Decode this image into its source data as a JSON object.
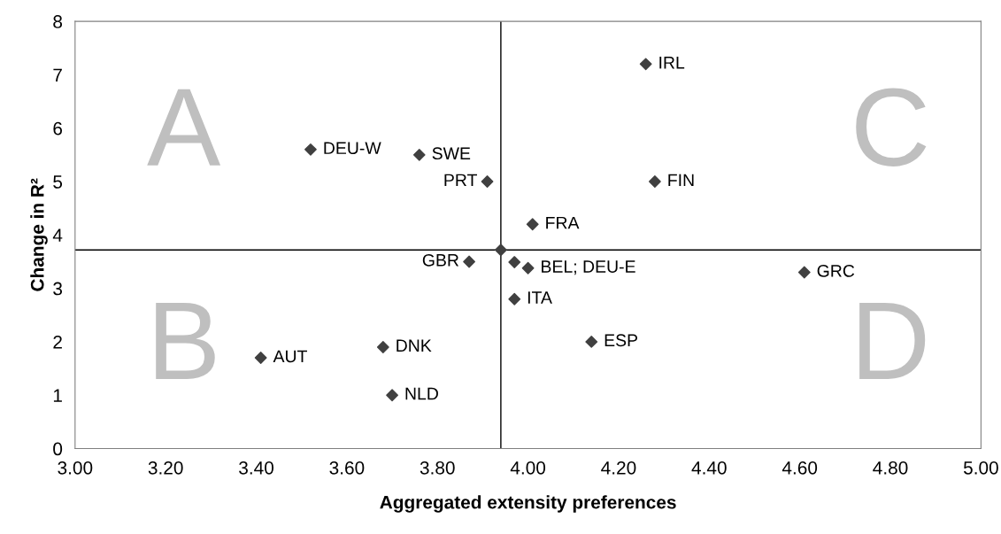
{
  "chart_data": {
    "type": "scatter",
    "xlabel": "Aggregated extensity preferences",
    "ylabel": "Change in R²",
    "x": [
      3.52,
      3.76,
      3.91,
      3.94,
      3.87,
      4.26,
      4.28,
      4.01,
      3.97,
      4.0,
      3.97,
      4.14,
      4.61,
      3.41,
      3.68,
      3.7
    ],
    "series": [
      {
        "color": "#404040",
        "values": [
          5.6,
          5.5,
          5.0,
          3.72,
          3.5,
          7.2,
          5.0,
          4.2,
          3.49,
          3.38,
          2.8,
          2.0,
          3.3,
          1.7,
          1.9,
          1.0
        ]
      }
    ],
    "marker": "diamond",
    "xlim": [
      3.0,
      5.0
    ],
    "xticks": [
      {
        "value": 3.0,
        "label": "3.00"
      },
      {
        "value": 3.2,
        "label": "3.20"
      },
      {
        "value": 3.4,
        "label": "3.40"
      },
      {
        "value": 3.6,
        "label": "3.60"
      },
      {
        "value": 3.8,
        "label": "3.80"
      },
      {
        "value": 4.0,
        "label": "4.00"
      },
      {
        "value": 4.2,
        "label": "4.20"
      },
      {
        "value": 4.4,
        "label": "4.40"
      },
      {
        "value": 4.6,
        "label": "4.60"
      },
      {
        "value": 4.8,
        "label": "4.80"
      },
      {
        "value": 5.0,
        "label": "5.00"
      }
    ],
    "ylim": [
      0,
      8
    ],
    "yticks": [
      0,
      1,
      2,
      3,
      4,
      5,
      6,
      7,
      8
    ],
    "grid": false,
    "legend": false,
    "ref_lines": [
      {
        "axis": "x",
        "value": 3.94,
        "color": "#000000"
      },
      {
        "axis": "y",
        "value": 3.72,
        "color": "#000000"
      }
    ],
    "annotations": [
      "A",
      "B",
      "C",
      "D",
      {
        "text": "DEU-W",
        "x": 3.52,
        "y": 5.6
      },
      {
        "text": "SWE",
        "x": 3.76,
        "y": 5.5
      },
      {
        "text": "PRT",
        "x": 3.91,
        "y": 5.0
      },
      {
        "text": "GBR",
        "x": 3.87,
        "y": 3.5
      },
      {
        "text": "IRL",
        "x": 4.26,
        "y": 7.2
      },
      {
        "text": "FIN",
        "x": 4.28,
        "y": 5.0
      },
      {
        "text": "FRA",
        "x": 4.01,
        "y": 4.2
      },
      {
        "text": "BEL; DEU-E",
        "x": 4.0,
        "y": 3.38
      },
      {
        "text": "ITA",
        "x": 3.97,
        "y": 2.8
      },
      {
        "text": "ESP",
        "x": 4.14,
        "y": 2.0
      },
      {
        "text": "GRC",
        "x": 4.61,
        "y": 3.3
      },
      {
        "text": "AUT",
        "x": 3.41,
        "y": 1.7
      },
      {
        "text": "DNK",
        "x": 3.68,
        "y": 1.9
      },
      {
        "text": "NLD",
        "x": 3.7,
        "y": 1.0
      }
    ]
  }
}
